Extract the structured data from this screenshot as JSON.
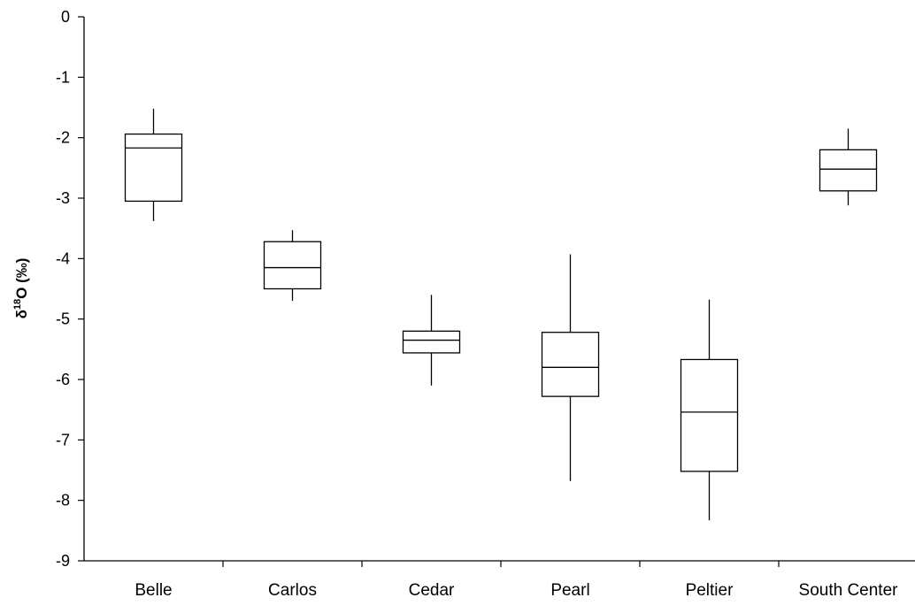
{
  "chart_data": {
    "type": "box",
    "title": "",
    "xlabel": "",
    "ylabel": {
      "symbol": "δ",
      "superscript": "18",
      "main": "O (‰)"
    },
    "ylim": [
      -9,
      0
    ],
    "yticks": [
      0,
      -1,
      -2,
      -3,
      -4,
      -5,
      -6,
      -7,
      -8,
      -9
    ],
    "grid": false,
    "categories": [
      "Belle",
      "Carlos",
      "Cedar",
      "Pearl",
      "Peltier",
      "South Center"
    ],
    "boxes": [
      {
        "name": "Belle",
        "min": -3.38,
        "q1": -3.05,
        "median": -2.17,
        "q3": -1.94,
        "max": -1.52
      },
      {
        "name": "Carlos",
        "min": -4.7,
        "q1": -4.5,
        "median": -4.15,
        "q3": -3.72,
        "max": -3.53
      },
      {
        "name": "Cedar",
        "min": -6.1,
        "q1": -5.56,
        "median": -5.35,
        "q3": -5.2,
        "max": -4.6
      },
      {
        "name": "Pearl",
        "min": -7.68,
        "q1": -6.28,
        "median": -5.8,
        "q3": -5.22,
        "max": -3.93
      },
      {
        "name": "Peltier",
        "min": -8.33,
        "q1": -7.52,
        "median": -6.54,
        "q3": -5.67,
        "max": -4.68
      },
      {
        "name": "South Center",
        "min": -3.12,
        "q1": -2.88,
        "median": -2.52,
        "q3": -2.2,
        "max": -1.85
      }
    ]
  }
}
